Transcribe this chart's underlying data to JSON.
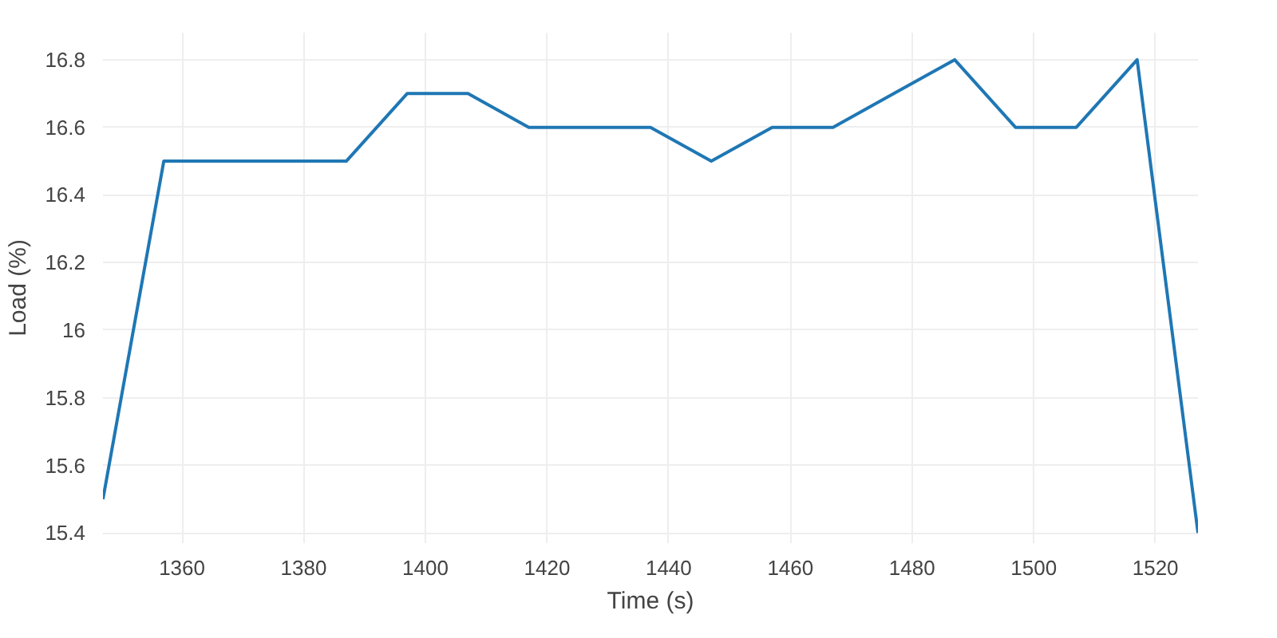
{
  "chart_data": {
    "type": "line",
    "xlabel": "Time (s)",
    "ylabel": "Load (%)",
    "x": [
      1347,
      1357,
      1367,
      1377,
      1387,
      1397,
      1407,
      1417,
      1427,
      1437,
      1447,
      1457,
      1467,
      1477,
      1487,
      1497,
      1507,
      1517,
      1527
    ],
    "series": [
      {
        "color": "#1f77b4",
        "values": [
          15.5,
          16.5,
          16.5,
          16.5,
          16.5,
          16.7,
          16.7,
          16.6,
          16.6,
          16.6,
          16.5,
          16.6,
          16.6,
          16.7,
          16.8,
          16.6,
          16.6,
          16.8,
          15.4
        ]
      }
    ],
    "xlim": [
      1347,
      1527
    ],
    "xticks": [
      1360,
      1380,
      1400,
      1420,
      1440,
      1460,
      1480,
      1500,
      1520
    ],
    "ylim": [
      15.37,
      16.88
    ],
    "yticks": [
      15.4,
      15.6,
      15.8,
      {
        "value": 16,
        "label": "16"
      },
      16.2,
      16.4,
      16.6,
      16.8
    ],
    "grid": true,
    "marker": "none",
    "line_style": "solid"
  }
}
